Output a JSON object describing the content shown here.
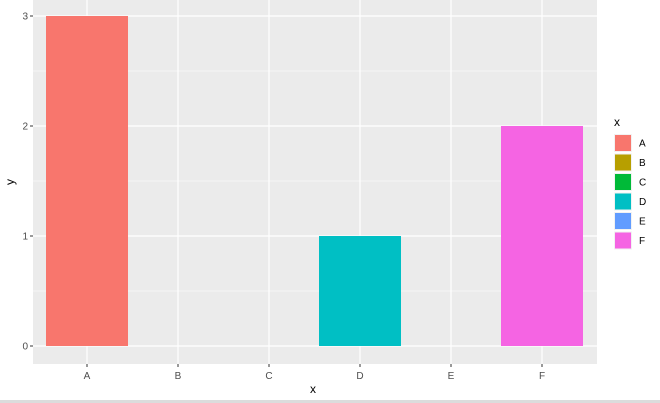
{
  "chart_data": {
    "type": "bar",
    "categories": [
      "A",
      "B",
      "C",
      "D",
      "E",
      "F"
    ],
    "values": [
      3,
      0,
      0,
      1,
      0,
      2
    ],
    "xlabel": "x",
    "ylabel": "y",
    "ylim": [
      0,
      3
    ],
    "yticks": [
      0,
      1,
      2,
      3
    ],
    "grid": true,
    "legend": {
      "title": "x",
      "placement": "right",
      "items": [
        "A",
        "B",
        "C",
        "D",
        "E",
        "F"
      ]
    },
    "colors": {
      "A": "#F8766D",
      "B": "#B79F00",
      "C": "#00BA38",
      "D": "#00BFC4",
      "E": "#619CFF",
      "F": "#F564E3"
    },
    "panel_background": "#EBEBEB",
    "grid_color": "#FFFFFF"
  }
}
